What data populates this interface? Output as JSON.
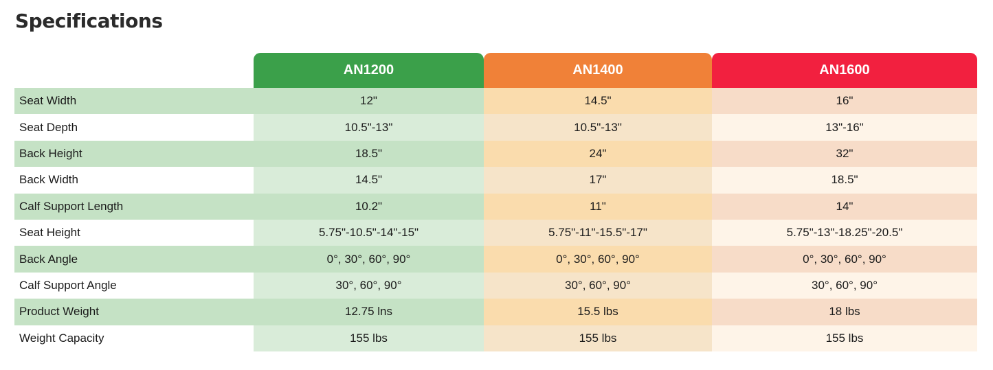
{
  "header": {
    "title": "Specifications"
  },
  "table": {
    "columns": [
      "AN1200",
      "AN1400",
      "AN1600"
    ],
    "rows": [
      [
        "Seat Width",
        "12\"",
        "14.5\"",
        "16\""
      ],
      [
        "Seat Depth",
        "10.5\"-13\"",
        "10.5\"-13\"",
        "13\"-16\""
      ],
      [
        "Back Height",
        "18.5\"",
        "24\"",
        "32\""
      ],
      [
        "Back Width",
        "14.5\"",
        "17\"",
        "18.5\""
      ],
      [
        "Calf Support Length",
        "10.2\"",
        "11\"",
        "14\""
      ],
      [
        "Seat Height",
        "5.75\"-10.5\"-14\"-15\"",
        "5.75\"-11\"-15.5\"-17\"",
        "5.75\"-13\"-18.25\"-20.5\""
      ],
      [
        "Back Angle",
        "0°, 30°, 60°, 90°",
        "0°, 30°, 60°, 90°",
        "0°, 30°, 60°, 90°"
      ],
      [
        "Calf Support Angle",
        "30°, 60°, 90°",
        "30°, 60°, 90°",
        "30°, 60°, 90°"
      ],
      [
        "Product Weight",
        "12.75 lns",
        "15.5 lbs",
        "18 lbs"
      ],
      [
        "Weight Capacity",
        "155 lbs",
        "155 lbs",
        "155 lbs"
      ]
    ]
  }
}
